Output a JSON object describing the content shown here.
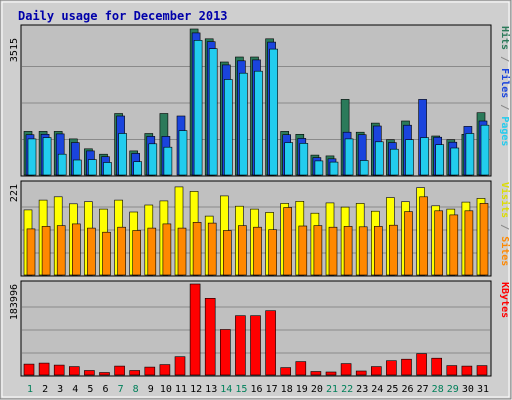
{
  "chart_data": {
    "type": "bar",
    "title": "Daily usage for December 2013",
    "categories": [
      "1",
      "2",
      "3",
      "4",
      "5",
      "6",
      "7",
      "8",
      "9",
      "10",
      "11",
      "12",
      "13",
      "14",
      "15",
      "16",
      "17",
      "18",
      "19",
      "20",
      "21",
      "22",
      "23",
      "24",
      "25",
      "26",
      "27",
      "28",
      "29",
      "30",
      "31"
    ],
    "weekend_days": [
      "1",
      "7",
      "8",
      "14",
      "15",
      "21",
      "22",
      "28",
      "29"
    ],
    "panels": [
      {
        "id": "hits",
        "y_tick_label": "3515",
        "ylim": [
          0,
          3515
        ],
        "right_label": [
          "Pages",
          " / ",
          "Files",
          " / ",
          "Hits"
        ],
        "series": [
          {
            "name": "Hits",
            "color": "#2b7a5a",
            "values": [
              1050,
              1050,
              1050,
              870,
              630,
              500,
              1480,
              580,
              1000,
              1480,
              0,
              3515,
              3280,
              2720,
              2840,
              2840,
              3280,
              1050,
              980,
              480,
              460,
              1820,
              1030,
              1250,
              850,
              1300,
              0,
              940,
              850,
              980,
              1500
            ]
          },
          {
            "name": "Files",
            "color": "#1a44dd",
            "values": [
              970,
              980,
              990,
              780,
              580,
              440,
              1420,
              520,
              930,
              930,
              1420,
              3420,
              3210,
              2650,
              2750,
              2770,
              3200,
              970,
              880,
              420,
              390,
              1030,
              970,
              1180,
              780,
              1200,
              1820,
              910,
              790,
              1170,
              1300
            ]
          },
          {
            "name": "Pages",
            "color": "#22ccee",
            "values": [
              870,
              900,
              500,
              360,
              370,
              300,
              1000,
              320,
              750,
              670,
              1070,
              3240,
              3040,
              2300,
              2450,
              2500,
              3030,
              780,
              760,
              340,
              310,
              870,
              350,
              800,
              620,
              850,
              900,
              730,
              650,
              1000,
              1200
            ]
          }
        ]
      },
      {
        "id": "visits",
        "y_tick_label": "221",
        "ylim": [
          0,
          221
        ],
        "right_label": [
          "Sites",
          " / ",
          "Visits"
        ],
        "series": [
          {
            "name": "Visits",
            "color": "#ffff00",
            "values": [
              158,
              182,
              190,
              173,
              178,
              160,
              182,
              153,
              170,
              180,
              214,
              203,
              143,
              192,
              167,
              160,
              152,
              174,
              179,
              150,
              175,
              165,
              174,
              155,
              188,
              178,
              212,
              168,
              160,
              177,
              186
            ]
          },
          {
            "name": "Sites",
            "color": "#ff8800",
            "values": [
              112,
              118,
              120,
              124,
              114,
              104,
              116,
              108,
              114,
              124,
              114,
              128,
              126,
              108,
              120,
              116,
              110,
              164,
              119,
              120,
              116,
              118,
              117,
              118,
              121,
              154,
              190,
              156,
              146,
              156,
              174
            ]
          }
        ]
      },
      {
        "id": "kbytes",
        "y_tick_label": "183996",
        "ylim": [
          0,
          183996
        ],
        "right_label": [
          "KBytes"
        ],
        "series": [
          {
            "name": "KBytes",
            "color": "#ff0000",
            "values": [
              22000,
              24000,
              20000,
              17000,
              9000,
              5000,
              18000,
              9000,
              16000,
              21000,
              37000,
              183996,
              155000,
              92000,
              120000,
              120000,
              130000,
              15000,
              27000,
              7000,
              6000,
              23000,
              8000,
              17000,
              29000,
              32000,
              43000,
              34000,
              19000,
              18000,
              19000
            ]
          }
        ]
      }
    ]
  }
}
